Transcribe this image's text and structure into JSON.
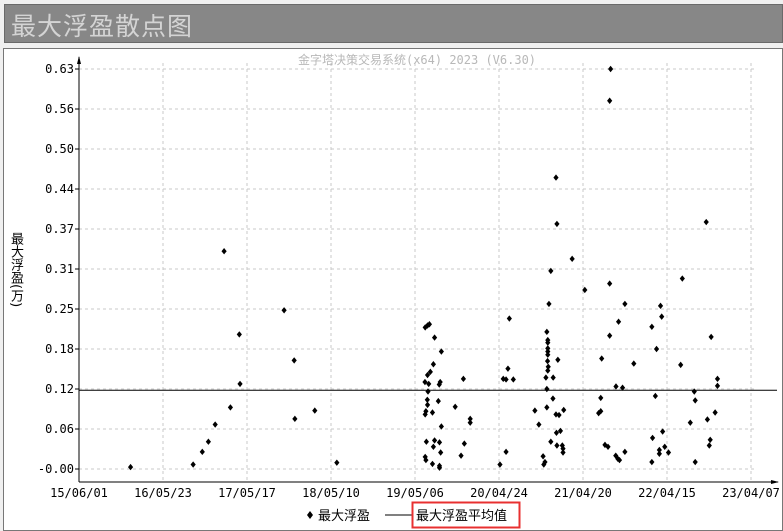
{
  "window": {
    "title": "最大浮盈散点图"
  },
  "chart_data": {
    "type": "scatter",
    "watermark": "金字塔决策交易系统(x64) 2023 (V6.30)",
    "ylabel": "最大浮盈(万)",
    "xlabel": "",
    "ylim": [
      0,
      0.63
    ],
    "xlim": [
      "2015-06-01",
      "2023-04-07"
    ],
    "grid": true,
    "legend_placement": "bottom",
    "y_ticks": [
      "-0.00",
      "0.06",
      "0.12",
      "0.18",
      "0.25",
      "0.31",
      "0.37",
      "0.44",
      "0.50",
      "0.56",
      "0.63"
    ],
    "x_ticks": [
      {
        "date": "2015-06-01",
        "label": "15/06/01"
      },
      {
        "date": "2016-05-23",
        "label": "16/05/23"
      },
      {
        "date": "2017-05-17",
        "label": "17/05/17"
      },
      {
        "date": "2018-05-10",
        "label": "18/05/10"
      },
      {
        "date": "2019-05-06",
        "label": "19/05/06"
      },
      {
        "date": "2020-04-24",
        "label": "20/04/24"
      },
      {
        "date": "2021-04-20",
        "label": "21/04/20"
      },
      {
        "date": "2022-04-15",
        "label": "22/04/15"
      },
      {
        "date": "2023-04-07",
        "label": "23/04/07"
      }
    ],
    "colors": {
      "points": "#000000",
      "average_line": "#000000",
      "grid": "#c8c8c8",
      "highlight_box": "#e83030"
    },
    "series": [
      {
        "name": "最大浮盈",
        "kind": "points",
        "points": [
          [
            "2016-01-07",
            0.003
          ],
          [
            "2016-09-30",
            0.007
          ],
          [
            "2016-11-08",
            0.027
          ],
          [
            "2016-12-04",
            0.043
          ],
          [
            "2017-01-02",
            0.07
          ],
          [
            "2017-02-09",
            0.343
          ],
          [
            "2017-03-08",
            0.097
          ],
          [
            "2017-04-15",
            0.212
          ],
          [
            "2017-04-18",
            0.134
          ],
          [
            "2017-10-23",
            0.25
          ],
          [
            "2017-12-05",
            0.171
          ],
          [
            "2017-12-08",
            0.079
          ],
          [
            "2018-03-03",
            0.092
          ],
          [
            "2018-06-05",
            0.01
          ],
          [
            "2019-06-17",
            0.223
          ],
          [
            "2019-06-27",
            0.226
          ],
          [
            "2019-07-05",
            0.228
          ],
          [
            "2019-07-27",
            0.207
          ],
          [
            "2019-08-25",
            0.185
          ],
          [
            "2020-06-10",
            0.237
          ],
          [
            "2019-07-22",
            0.165
          ],
          [
            "2019-07-09",
            0.153
          ],
          [
            "2019-06-27",
            0.148
          ],
          [
            "2019-11-27",
            0.142
          ],
          [
            "2020-06-04",
            0.158
          ],
          [
            "2020-05-15",
            0.142
          ],
          [
            "2020-05-27",
            0.141
          ],
          [
            "2020-06-27",
            0.141
          ],
          [
            "2019-06-16",
            0.137
          ],
          [
            "2019-07-02",
            0.134
          ],
          [
            "2019-08-20",
            0.137
          ],
          [
            "2019-08-16",
            0.133
          ],
          [
            "2019-06-29",
            0.122
          ],
          [
            "2019-06-26",
            0.109
          ],
          [
            "2019-06-27",
            0.101
          ],
          [
            "2019-08-12",
            0.107
          ],
          [
            "2019-10-23",
            0.098
          ],
          [
            "2019-06-20",
            0.091
          ],
          [
            "2019-06-17",
            0.086
          ],
          [
            "2019-07-18",
            0.089
          ],
          [
            "2019-12-26",
            0.079
          ],
          [
            "2019-12-26",
            0.073
          ],
          [
            "2019-08-25",
            0.067
          ],
          [
            "2019-06-22",
            0.043
          ],
          [
            "2019-07-27",
            0.045
          ],
          [
            "2019-08-17",
            0.042
          ],
          [
            "2019-07-22",
            0.035
          ],
          [
            "2019-12-01",
            0.04
          ],
          [
            "2019-08-22",
            0.026
          ],
          [
            "2019-11-17",
            0.021
          ],
          [
            "2020-05-27",
            0.027
          ],
          [
            "2019-06-17",
            0.019
          ],
          [
            "2019-06-20",
            0.014
          ],
          [
            "2019-07-18",
            0.008
          ],
          [
            "2019-08-17",
            0.005
          ],
          [
            "2019-08-17",
            0.002
          ],
          [
            "2020-05-01",
            0.007
          ],
          [
            "2020-12-26",
            0.459
          ],
          [
            "2020-12-30",
            0.386
          ],
          [
            "2021-03-05",
            0.331
          ],
          [
            "2020-12-04",
            0.312
          ],
          [
            "2021-04-28",
            0.282
          ],
          [
            "2021-08-12",
            0.292
          ],
          [
            "2020-11-26",
            0.26
          ],
          [
            "2021-09-19",
            0.232
          ],
          [
            "2020-11-17",
            0.216
          ],
          [
            "2021-08-12",
            0.21
          ],
          [
            "2020-11-21",
            0.203
          ],
          [
            "2020-11-21",
            0.199
          ],
          [
            "2020-11-21",
            0.19
          ],
          [
            "2020-11-21",
            0.185
          ],
          [
            "2020-11-21",
            0.18
          ],
          [
            "2021-01-03",
            0.172
          ],
          [
            "2020-11-20",
            0.17
          ],
          [
            "2020-11-23",
            0.161
          ],
          [
            "2020-11-21",
            0.155
          ],
          [
            "2020-11-13",
            0.144
          ],
          [
            "2020-12-14",
            0.144
          ],
          [
            "2021-07-09",
            0.174
          ],
          [
            "2021-09-08",
            0.13
          ],
          [
            "2020-11-17",
            0.126
          ],
          [
            "2020-12-13",
            0.111
          ],
          [
            "2021-07-05",
            0.112
          ],
          [
            "2020-09-27",
            0.092
          ],
          [
            "2020-11-17",
            0.097
          ],
          [
            "2020-12-26",
            0.086
          ],
          [
            "2021-01-08",
            0.085
          ],
          [
            "2021-01-28",
            0.093
          ],
          [
            "2021-06-26",
            0.088
          ],
          [
            "2021-07-05",
            0.091
          ],
          [
            "2020-10-14",
            0.07
          ],
          [
            "2020-12-28",
            0.057
          ],
          [
            "2021-01-14",
            0.06
          ],
          [
            "2020-12-04",
            0.043
          ],
          [
            "2020-12-30",
            0.037
          ],
          [
            "2021-01-22",
            0.037
          ],
          [
            "2021-01-25",
            0.032
          ],
          [
            "2021-01-25",
            0.026
          ],
          [
            "2021-07-23",
            0.038
          ],
          [
            "2021-08-05",
            0.035
          ],
          [
            "2020-11-01",
            0.02
          ],
          [
            "2020-11-09",
            0.011
          ],
          [
            "2020-11-04",
            0.007
          ],
          [
            "2021-09-07",
            0.021
          ],
          [
            "2021-09-16",
            0.016
          ],
          [
            "2021-09-23",
            0.014
          ],
          [
            "2021-08-16",
            0.63
          ],
          [
            "2021-08-12",
            0.58
          ],
          [
            "2022-09-28",
            0.389
          ],
          [
            "2022-06-18",
            0.3
          ],
          [
            "2021-10-16",
            0.26
          ],
          [
            "2022-03-17",
            0.257
          ],
          [
            "2022-03-22",
            0.24
          ],
          [
            "2022-02-08",
            0.224
          ],
          [
            "2022-10-19",
            0.208
          ],
          [
            "2022-02-28",
            0.189
          ],
          [
            "2021-11-23",
            0.166
          ],
          [
            "2022-06-11",
            0.164
          ],
          [
            "2022-11-15",
            0.142
          ],
          [
            "2022-11-15",
            0.131
          ],
          [
            "2021-10-06",
            0.128
          ],
          [
            "2022-08-08",
            0.122
          ],
          [
            "2022-02-23",
            0.115
          ],
          [
            "2022-08-12",
            0.108
          ],
          [
            "2022-11-05",
            0.089
          ],
          [
            "2022-10-03",
            0.078
          ],
          [
            "2022-07-22",
            0.073
          ],
          [
            "2022-03-26",
            0.059
          ],
          [
            "2022-02-11",
            0.049
          ],
          [
            "2022-10-15",
            0.046
          ],
          [
            "2022-10-11",
            0.037
          ],
          [
            "2021-10-16",
            0.027
          ],
          [
            "2022-03-12",
            0.03
          ],
          [
            "2022-03-12",
            0.024
          ],
          [
            "2022-04-04",
            0.035
          ],
          [
            "2022-04-20",
            0.026
          ],
          [
            "2022-02-08",
            0.011
          ],
          [
            "2022-08-12",
            0.011
          ]
        ]
      },
      {
        "name": "最大浮盈平均值",
        "kind": "hline",
        "value": 0.124
      }
    ]
  }
}
